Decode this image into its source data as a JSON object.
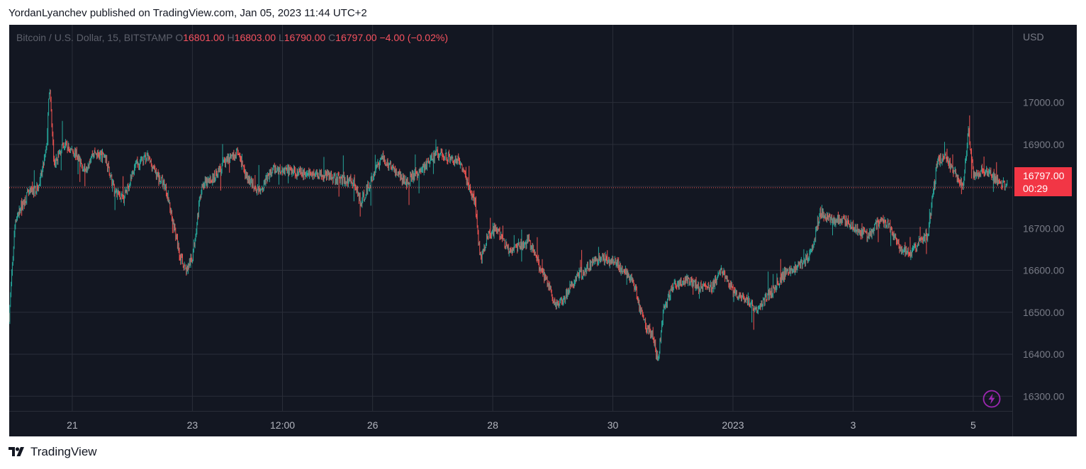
{
  "publish_line": "YordanLyanchev published on TradingView.com, Jan 05, 2023 11:44 UTC+2",
  "legend": {
    "symbol": "Bitcoin / U.S. Dollar, 15, BITSTAMP",
    "o_label": "O",
    "o_value": "16801.00",
    "h_label": "H",
    "h_value": "16803.00",
    "l_label": "L",
    "l_value": "16790.00",
    "c_label": "C",
    "c_value": "16797.00",
    "change": "−4.00 (−0.02%)"
  },
  "last_price": {
    "price": "16797.00",
    "countdown": "00:29",
    "value": 16797
  },
  "brand": {
    "name": "TradingView"
  },
  "colors": {
    "background": "#131722",
    "up": "#26a69a",
    "down": "#ef5350",
    "grid": "#2a2e39",
    "price_tag": "#f23645",
    "text_muted": "#787b86",
    "bolt": "#9c27b0"
  },
  "icons": {
    "alert": "lightning-bolt-icon",
    "logo": "tradingview-logo-icon"
  },
  "chart_data": {
    "type": "candlestick",
    "symbol": "Bitcoin / U.S. Dollar, 15, BITSTAMP",
    "interval": "15",
    "currency_label": "USD",
    "ylim": [
      16265,
      17185
    ],
    "y_ticks": [
      {
        "value": 17000,
        "label": "17000.00"
      },
      {
        "value": 16900,
        "label": "16900.00"
      },
      {
        "value": 16800,
        "label": "16800.00"
      },
      {
        "value": 16700,
        "label": "16700.00"
      },
      {
        "value": 16600,
        "label": "16600.00"
      },
      {
        "value": 16500,
        "label": "16500.00"
      },
      {
        "value": 16400,
        "label": "16400.00"
      },
      {
        "value": 16300,
        "label": "16300.00"
      }
    ],
    "x_range_days": [
      0,
      16.7
    ],
    "x_ticks": [
      {
        "day": 1.05,
        "label": "21"
      },
      {
        "day": 3.05,
        "label": "23"
      },
      {
        "day": 4.55,
        "label": "12:00"
      },
      {
        "day": 6.05,
        "label": "26"
      },
      {
        "day": 8.05,
        "label": "28"
      },
      {
        "day": 10.05,
        "label": "30"
      },
      {
        "day": 12.05,
        "label": "2023"
      },
      {
        "day": 14.05,
        "label": "3"
      },
      {
        "day": 16.05,
        "label": "5"
      }
    ],
    "grid": true,
    "last_price": 16797,
    "price_path": [
      [
        0.0,
        16490
      ],
      [
        0.1,
        16720
      ],
      [
        0.3,
        16780
      ],
      [
        0.5,
        16800
      ],
      [
        0.62,
        16890
      ],
      [
        0.67,
        17040
      ],
      [
        0.75,
        16850
      ],
      [
        0.9,
        16900
      ],
      [
        1.1,
        16880
      ],
      [
        1.25,
        16840
      ],
      [
        1.4,
        16880
      ],
      [
        1.6,
        16870
      ],
      [
        1.75,
        16790
      ],
      [
        1.9,
        16770
      ],
      [
        2.1,
        16850
      ],
      [
        2.3,
        16870
      ],
      [
        2.45,
        16830
      ],
      [
        2.6,
        16800
      ],
      [
        2.75,
        16700
      ],
      [
        2.85,
        16630
      ],
      [
        2.95,
        16600
      ],
      [
        3.05,
        16630
      ],
      [
        3.2,
        16800
      ],
      [
        3.4,
        16820
      ],
      [
        3.6,
        16860
      ],
      [
        3.8,
        16880
      ],
      [
        3.95,
        16820
      ],
      [
        4.15,
        16790
      ],
      [
        4.4,
        16840
      ],
      [
        4.6,
        16840
      ],
      [
        4.9,
        16830
      ],
      [
        5.2,
        16830
      ],
      [
        5.5,
        16820
      ],
      [
        5.75,
        16810
      ],
      [
        5.85,
        16760
      ],
      [
        6.05,
        16820
      ],
      [
        6.2,
        16870
      ],
      [
        6.4,
        16840
      ],
      [
        6.6,
        16810
      ],
      [
        6.8,
        16830
      ],
      [
        7.0,
        16860
      ],
      [
        7.15,
        16880
      ],
      [
        7.3,
        16870
      ],
      [
        7.5,
        16860
      ],
      [
        7.65,
        16800
      ],
      [
        7.75,
        16760
      ],
      [
        7.85,
        16620
      ],
      [
        7.95,
        16680
      ],
      [
        8.1,
        16700
      ],
      [
        8.3,
        16650
      ],
      [
        8.5,
        16660
      ],
      [
        8.65,
        16670
      ],
      [
        8.8,
        16620
      ],
      [
        9.0,
        16560
      ],
      [
        9.1,
        16510
      ],
      [
        9.25,
        16540
      ],
      [
        9.45,
        16580
      ],
      [
        9.65,
        16610
      ],
      [
        9.85,
        16630
      ],
      [
        10.05,
        16620
      ],
      [
        10.25,
        16600
      ],
      [
        10.4,
        16570
      ],
      [
        10.5,
        16510
      ],
      [
        10.6,
        16470
      ],
      [
        10.72,
        16440
      ],
      [
        10.8,
        16380
      ],
      [
        10.9,
        16510
      ],
      [
        11.05,
        16560
      ],
      [
        11.3,
        16580
      ],
      [
        11.5,
        16560
      ],
      [
        11.7,
        16560
      ],
      [
        11.85,
        16600
      ],
      [
        12.05,
        16550
      ],
      [
        12.2,
        16530
      ],
      [
        12.45,
        16510
      ],
      [
        12.7,
        16550
      ],
      [
        12.95,
        16600
      ],
      [
        13.15,
        16610
      ],
      [
        13.35,
        16640
      ],
      [
        13.5,
        16740
      ],
      [
        13.7,
        16720
      ],
      [
        13.9,
        16720
      ],
      [
        14.1,
        16700
      ],
      [
        14.3,
        16680
      ],
      [
        14.5,
        16720
      ],
      [
        14.65,
        16710
      ],
      [
        14.8,
        16660
      ],
      [
        15.0,
        16640
      ],
      [
        15.15,
        16670
      ],
      [
        15.3,
        16690
      ],
      [
        15.45,
        16860
      ],
      [
        15.6,
        16870
      ],
      [
        15.75,
        16830
      ],
      [
        15.88,
        16800
      ],
      [
        15.97,
        16940
      ],
      [
        16.05,
        16820
      ],
      [
        16.2,
        16840
      ],
      [
        16.35,
        16830
      ],
      [
        16.5,
        16810
      ],
      [
        16.62,
        16797
      ]
    ]
  }
}
